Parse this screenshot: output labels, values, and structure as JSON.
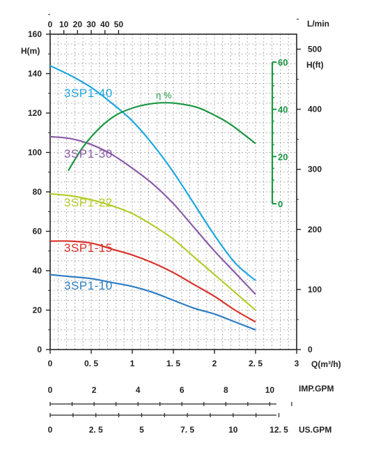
{
  "chart_data": {
    "type": "line",
    "x_label": "Q(m³/h)",
    "x_ticks": [
      "0",
      "0. 5",
      "1",
      "1. 5",
      "2",
      "2. 5",
      "3"
    ],
    "x_range": [
      0,
      3
    ],
    "y_label": "H(m)",
    "y_ticks": [
      "0",
      "20",
      "40",
      "60",
      "80",
      "100",
      "120",
      "140",
      "160"
    ],
    "y_range": [
      0,
      160
    ],
    "top_axis": {
      "label": "L/min",
      "ticks": [
        "0",
        "10",
        "20",
        "30",
        "40",
        "50"
      ],
      "range": [
        0,
        50
      ]
    },
    "right_axis": {
      "label": "H(ft)",
      "ticks": [
        "0",
        "100",
        "200",
        "300",
        "400",
        "500"
      ],
      "range": [
        0,
        525
      ]
    },
    "eta_axis": {
      "label": "η %",
      "ticks": [
        "0",
        "20",
        "40",
        "60"
      ],
      "range": [
        0,
        60
      ],
      "color": "#1a9641"
    },
    "grid": true,
    "series": [
      {
        "name": "3SP1-40",
        "color": "#1ea7e1",
        "x": [
          0,
          0.25,
          0.5,
          0.75,
          1,
          1.25,
          1.5,
          1.75,
          2,
          2.25,
          2.5
        ],
        "y": [
          144,
          139,
          133,
          125,
          116,
          104,
          90,
          74,
          58,
          44,
          35
        ]
      },
      {
        "name": "3SP1-30",
        "color": "#8a5ba6",
        "x": [
          0,
          0.25,
          0.5,
          0.75,
          1,
          1.25,
          1.5,
          1.75,
          2,
          2.25,
          2.5
        ],
        "y": [
          108,
          107,
          104,
          99,
          92,
          84,
          74,
          62,
          50,
          39,
          28
        ]
      },
      {
        "name": "3SP1-22",
        "color": "#b5cc2a",
        "x": [
          0,
          0.25,
          0.5,
          0.75,
          1,
          1.25,
          1.5,
          1.75,
          2,
          2.25,
          2.5
        ],
        "y": [
          79,
          78,
          76,
          73,
          69,
          63,
          56,
          47,
          38,
          29,
          20
        ]
      },
      {
        "name": "3SP1-15",
        "color": "#d9322b",
        "x": [
          0,
          0.25,
          0.5,
          0.75,
          1,
          1.25,
          1.5,
          1.75,
          2,
          2.25,
          2.5
        ],
        "y": [
          55,
          55,
          54,
          51,
          48,
          44,
          39,
          33,
          27,
          20,
          14
        ]
      },
      {
        "name": "3SP1-10",
        "color": "#2d7dc3",
        "x": [
          0,
          0.25,
          0.5,
          0.75,
          1,
          1.25,
          1.5,
          1.75,
          2,
          2.25,
          2.5
        ],
        "y": [
          38,
          37,
          36,
          34,
          32,
          29,
          25,
          21,
          18,
          14,
          10
        ]
      }
    ],
    "efficiency": {
      "name": "η %",
      "color": "#1a9641",
      "x": [
        0.22,
        0.4,
        0.6,
        0.8,
        1.0,
        1.2,
        1.4,
        1.6,
        1.8,
        2.0,
        2.2,
        2.5
      ],
      "y": [
        14,
        24,
        32,
        37.5,
        40.5,
        42.2,
        42.8,
        42.2,
        40.7,
        37.5,
        33.5,
        25.5
      ]
    },
    "lower_scales": [
      {
        "label": "IMP.GPM",
        "ticks": [
          "0",
          "2",
          "4",
          "6",
          "8",
          "10"
        ],
        "range": [
          0,
          11
        ]
      },
      {
        "label": "US.GPM",
        "ticks": [
          "0",
          "2. 5",
          "5",
          "7. 5",
          "10",
          "12. 5"
        ],
        "range": [
          0,
          13.2
        ]
      }
    ]
  }
}
